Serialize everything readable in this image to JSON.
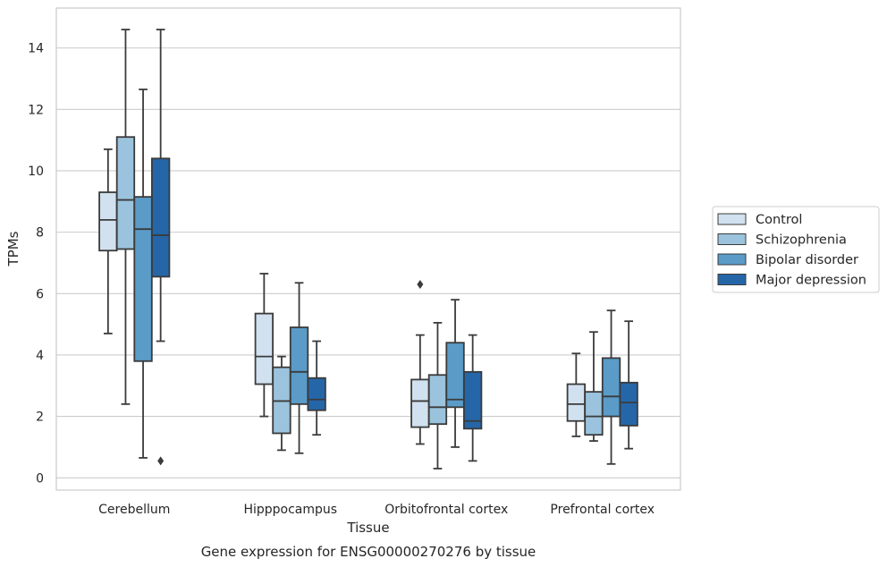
{
  "chart_data": {
    "type": "boxplot",
    "xlabel": "Tissue",
    "ylabel": "TPMs",
    "caption": "Gene expression for ENSG00000270276 by tissue",
    "ylim": [
      -0.4,
      15.3
    ],
    "yticks": [
      0,
      2,
      4,
      6,
      8,
      10,
      12,
      14
    ],
    "grid": "horizontal",
    "legend_position": "right-center",
    "categories": [
      "Cerebellum",
      "Hipppocampus",
      "Orbitofrontal cortex",
      "Prefrontal cortex"
    ],
    "series": [
      {
        "name": "Control",
        "color": "#d1e1f0",
        "boxes": [
          {
            "whislo": 4.7,
            "q1": 7.4,
            "med": 8.4,
            "q3": 9.3,
            "whishi": 10.7,
            "fliers": []
          },
          {
            "whislo": 2.0,
            "q1": 3.05,
            "med": 3.95,
            "q3": 5.35,
            "whishi": 6.65,
            "fliers": []
          },
          {
            "whislo": 1.1,
            "q1": 1.65,
            "med": 2.5,
            "q3": 3.2,
            "whishi": 4.65,
            "fliers": [
              6.3
            ]
          },
          {
            "whislo": 1.35,
            "q1": 1.85,
            "med": 2.4,
            "q3": 3.05,
            "whishi": 4.05,
            "fliers": []
          }
        ]
      },
      {
        "name": "Schizophrenia",
        "color": "#9bc3dd",
        "boxes": [
          {
            "whislo": 2.4,
            "q1": 7.45,
            "med": 9.05,
            "q3": 11.1,
            "whishi": 14.6,
            "fliers": []
          },
          {
            "whislo": 0.9,
            "q1": 1.45,
            "med": 2.5,
            "q3": 3.6,
            "whishi": 3.95,
            "fliers": []
          },
          {
            "whislo": 0.3,
            "q1": 1.75,
            "med": 2.3,
            "q3": 3.35,
            "whishi": 5.05,
            "fliers": []
          },
          {
            "whislo": 1.2,
            "q1": 1.4,
            "med": 2.0,
            "q3": 2.8,
            "whishi": 4.75,
            "fliers": []
          }
        ]
      },
      {
        "name": "Bipolar disorder",
        "color": "#5a9bc8",
        "boxes": [
          {
            "whislo": 0.65,
            "q1": 3.8,
            "med": 8.1,
            "q3": 9.15,
            "whishi": 12.65,
            "fliers": []
          },
          {
            "whislo": 0.8,
            "q1": 2.4,
            "med": 3.45,
            "q3": 4.9,
            "whishi": 6.35,
            "fliers": []
          },
          {
            "whislo": 1.0,
            "q1": 2.3,
            "med": 2.55,
            "q3": 4.4,
            "whishi": 5.8,
            "fliers": []
          },
          {
            "whislo": 0.45,
            "q1": 2.0,
            "med": 2.65,
            "q3": 3.9,
            "whishi": 5.45,
            "fliers": []
          }
        ]
      },
      {
        "name": "Major depression",
        "color": "#2566a8",
        "boxes": [
          {
            "whislo": 4.45,
            "q1": 6.55,
            "med": 7.9,
            "q3": 10.4,
            "whishi": 14.6,
            "fliers": [
              0.55
            ]
          },
          {
            "whislo": 1.4,
            "q1": 2.2,
            "med": 2.55,
            "q3": 3.25,
            "whishi": 4.45,
            "fliers": []
          },
          {
            "whislo": 0.55,
            "q1": 1.6,
            "med": 1.85,
            "q3": 3.45,
            "whishi": 4.65,
            "fliers": []
          },
          {
            "whislo": 0.95,
            "q1": 1.7,
            "med": 2.45,
            "q3": 3.1,
            "whishi": 5.1,
            "fliers": []
          }
        ]
      }
    ]
  }
}
